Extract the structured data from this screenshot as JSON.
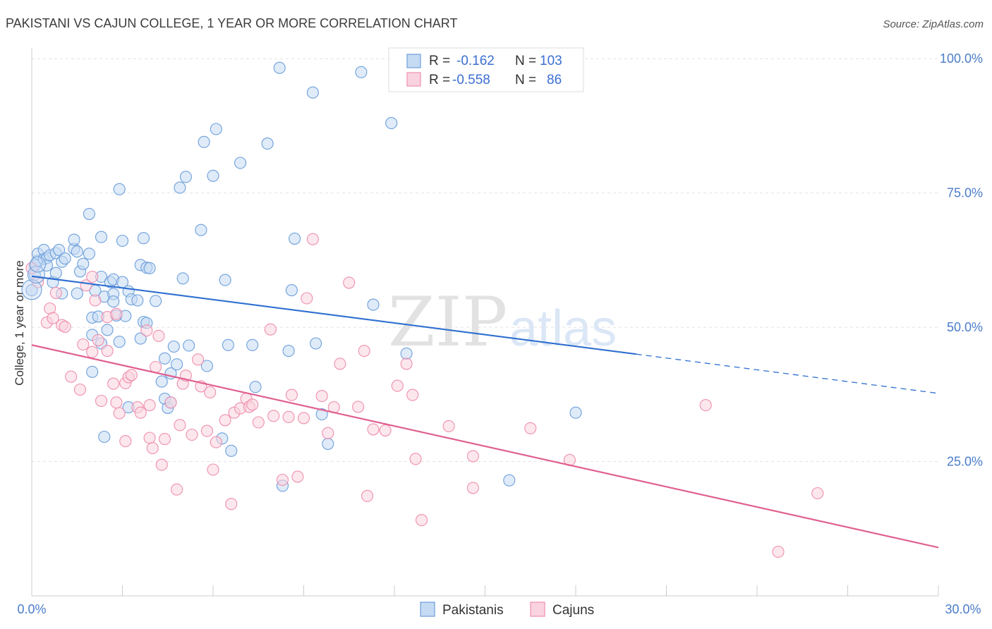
{
  "chart_data": {
    "type": "scatter",
    "title": "PAKISTANI VS CAJUN COLLEGE, 1 YEAR OR MORE CORRELATION CHART",
    "source": "Source: ZipAtlas.com",
    "xlabel": "",
    "ylabel": "College, 1 year or more",
    "xlim": [
      0,
      30
    ],
    "ylim": [
      0,
      102
    ],
    "x_tick_labels": [
      "0.0%",
      "30.0%"
    ],
    "y_ticks": [
      25,
      50,
      75,
      100
    ],
    "y_tick_labels": [
      "25.0%",
      "50.0%",
      "75.0%",
      "100.0%"
    ],
    "watermark": [
      "ZIP",
      "atlas"
    ],
    "legend": {
      "r_label": "R =",
      "n_label": "N =",
      "entries": [
        {
          "series": "Pakistanis",
          "r": "-0.162",
          "n": "103"
        },
        {
          "series": "Cajuns",
          "r": "-0.558",
          "n": "86"
        }
      ]
    },
    "series": [
      {
        "name": "Pakistanis",
        "color": "#6d9fdc",
        "fill": "#c5daf3",
        "line_color": "#2f6fd0",
        "trend": {
          "x0": 0,
          "y0": 59.5,
          "x1": 20,
          "y1": 45.0,
          "dash_x1": 30,
          "dash_y1": 37.7
        },
        "points": [
          [
            0.0,
            56.9
          ],
          [
            0.1,
            59.8
          ],
          [
            0.1,
            61.5
          ],
          [
            0.2,
            62.4
          ],
          [
            0.2,
            63.7
          ],
          [
            0.4,
            62.7
          ],
          [
            0.4,
            64.4
          ],
          [
            0.5,
            62.9
          ],
          [
            0.5,
            61.5
          ],
          [
            0.6,
            63.4
          ],
          [
            0.7,
            58.4
          ],
          [
            0.8,
            60.1
          ],
          [
            0.8,
            63.8
          ],
          [
            0.9,
            64.4
          ],
          [
            1.0,
            56.3
          ],
          [
            1.0,
            62.2
          ],
          [
            1.1,
            62.8
          ],
          [
            1.4,
            64.6
          ],
          [
            1.4,
            66.3
          ],
          [
            1.5,
            56.3
          ],
          [
            1.5,
            64.1
          ],
          [
            1.6,
            60.4
          ],
          [
            1.7,
            61.8
          ],
          [
            1.9,
            71.1
          ],
          [
            1.9,
            63.7
          ],
          [
            2.0,
            48.6
          ],
          [
            2.0,
            51.8
          ],
          [
            2.0,
            41.7
          ],
          [
            2.1,
            56.8
          ],
          [
            2.2,
            52.0
          ],
          [
            2.3,
            47.0
          ],
          [
            2.3,
            59.4
          ],
          [
            2.3,
            66.8
          ],
          [
            2.4,
            29.6
          ],
          [
            2.4,
            55.7
          ],
          [
            2.5,
            49.5
          ],
          [
            2.6,
            58.4
          ],
          [
            2.7,
            58.9
          ],
          [
            2.7,
            56.2
          ],
          [
            2.7,
            54.8
          ],
          [
            2.8,
            52.2
          ],
          [
            2.9,
            47.3
          ],
          [
            2.9,
            75.7
          ],
          [
            3.0,
            58.4
          ],
          [
            3.0,
            66.1
          ],
          [
            3.1,
            52.1
          ],
          [
            3.2,
            56.7
          ],
          [
            3.2,
            35.1
          ],
          [
            3.3,
            55.2
          ],
          [
            3.5,
            55.0
          ],
          [
            3.6,
            61.6
          ],
          [
            3.6,
            47.9
          ],
          [
            3.7,
            66.6
          ],
          [
            3.7,
            51.0
          ],
          [
            3.8,
            61.1
          ],
          [
            3.8,
            50.8
          ],
          [
            3.9,
            61.0
          ],
          [
            4.1,
            54.9
          ],
          [
            4.3,
            39.9
          ],
          [
            4.4,
            36.7
          ],
          [
            4.4,
            44.2
          ],
          [
            4.5,
            35.0
          ],
          [
            4.6,
            36.0
          ],
          [
            4.6,
            41.4
          ],
          [
            4.7,
            46.4
          ],
          [
            4.8,
            43.1
          ],
          [
            4.9,
            76.0
          ],
          [
            5.0,
            59.1
          ],
          [
            5.1,
            78.0
          ],
          [
            5.2,
            46.6
          ],
          [
            5.6,
            68.1
          ],
          [
            5.7,
            84.5
          ],
          [
            5.8,
            42.8
          ],
          [
            6.0,
            78.2
          ],
          [
            6.1,
            86.9
          ],
          [
            6.3,
            29.3
          ],
          [
            6.4,
            58.8
          ],
          [
            6.5,
            46.7
          ],
          [
            6.6,
            27.0
          ],
          [
            6.9,
            80.6
          ],
          [
            7.3,
            46.7
          ],
          [
            7.4,
            38.9
          ],
          [
            7.8,
            84.2
          ],
          [
            8.2,
            98.3
          ],
          [
            8.3,
            20.5
          ],
          [
            8.5,
            45.6
          ],
          [
            8.6,
            56.9
          ],
          [
            8.7,
            66.5
          ],
          [
            9.3,
            93.7
          ],
          [
            9.4,
            47.0
          ],
          [
            9.6,
            33.8
          ],
          [
            9.8,
            28.3
          ],
          [
            10.9,
            97.5
          ],
          [
            11.3,
            54.2
          ],
          [
            11.9,
            88.0
          ],
          [
            12.4,
            45.1
          ],
          [
            15.8,
            21.5
          ],
          [
            18.0,
            34.1
          ]
        ]
      },
      {
        "name": "Cajuns",
        "color": "#ef8fae",
        "fill": "#f9d3df",
        "line_color": "#e06090",
        "trend": {
          "x0": 0,
          "y0": 46.7,
          "x1": 30,
          "y1": 9.0
        },
        "points": [
          [
            0.0,
            61.0
          ],
          [
            0.2,
            58.4
          ],
          [
            0.5,
            50.9
          ],
          [
            0.6,
            53.5
          ],
          [
            0.7,
            51.7
          ],
          [
            0.8,
            56.4
          ],
          [
            1.0,
            50.4
          ],
          [
            1.1,
            50.1
          ],
          [
            1.3,
            40.8
          ],
          [
            1.6,
            38.4
          ],
          [
            1.7,
            46.8
          ],
          [
            1.8,
            57.8
          ],
          [
            2.0,
            45.4
          ],
          [
            2.0,
            59.4
          ],
          [
            2.1,
            55.0
          ],
          [
            2.2,
            47.6
          ],
          [
            2.3,
            36.3
          ],
          [
            2.5,
            45.6
          ],
          [
            2.5,
            51.9
          ],
          [
            2.7,
            39.5
          ],
          [
            2.8,
            52.5
          ],
          [
            2.8,
            36.0
          ],
          [
            2.9,
            34.0
          ],
          [
            3.1,
            39.6
          ],
          [
            3.1,
            28.8
          ],
          [
            3.2,
            40.7
          ],
          [
            3.3,
            41.1
          ],
          [
            3.5,
            35.1
          ],
          [
            3.6,
            34.1
          ],
          [
            3.8,
            49.4
          ],
          [
            3.9,
            35.5
          ],
          [
            3.9,
            29.4
          ],
          [
            4.0,
            27.5
          ],
          [
            4.1,
            42.6
          ],
          [
            4.2,
            48.4
          ],
          [
            4.3,
            24.4
          ],
          [
            4.4,
            29.2
          ],
          [
            4.6,
            36.0
          ],
          [
            4.8,
            19.8
          ],
          [
            4.9,
            31.8
          ],
          [
            5.0,
            39.5
          ],
          [
            5.1,
            41.0
          ],
          [
            5.3,
            30.0
          ],
          [
            5.5,
            44.0
          ],
          [
            5.6,
            39.0
          ],
          [
            5.8,
            30.7
          ],
          [
            5.9,
            37.9
          ],
          [
            6.0,
            23.5
          ],
          [
            6.1,
            28.6
          ],
          [
            6.4,
            32.7
          ],
          [
            6.6,
            17.1
          ],
          [
            6.7,
            34.1
          ],
          [
            6.9,
            34.9
          ],
          [
            7.1,
            36.7
          ],
          [
            7.2,
            35.2
          ],
          [
            7.3,
            35.6
          ],
          [
            7.5,
            32.3
          ],
          [
            7.9,
            49.6
          ],
          [
            8.0,
            33.5
          ],
          [
            8.3,
            21.6
          ],
          [
            8.5,
            33.3
          ],
          [
            8.6,
            37.4
          ],
          [
            8.8,
            22.2
          ],
          [
            9.0,
            33.1
          ],
          [
            9.1,
            55.4
          ],
          [
            9.3,
            66.4
          ],
          [
            9.6,
            37.2
          ],
          [
            9.8,
            30.3
          ],
          [
            10.0,
            35.1
          ],
          [
            10.2,
            43.2
          ],
          [
            10.5,
            58.3
          ],
          [
            10.8,
            35.2
          ],
          [
            11.0,
            45.6
          ],
          [
            11.1,
            18.6
          ],
          [
            11.3,
            31.0
          ],
          [
            11.7,
            30.8
          ],
          [
            12.1,
            39.1
          ],
          [
            12.4,
            43.2
          ],
          [
            12.6,
            37.4
          ],
          [
            12.7,
            25.5
          ],
          [
            12.9,
            14.1
          ],
          [
            13.8,
            31.6
          ],
          [
            14.6,
            26.0
          ],
          [
            14.6,
            20.1
          ],
          [
            16.5,
            31.2
          ],
          [
            17.8,
            25.3
          ],
          [
            22.3,
            35.5
          ],
          [
            24.7,
            8.2
          ],
          [
            26.0,
            19.1
          ]
        ]
      }
    ]
  }
}
